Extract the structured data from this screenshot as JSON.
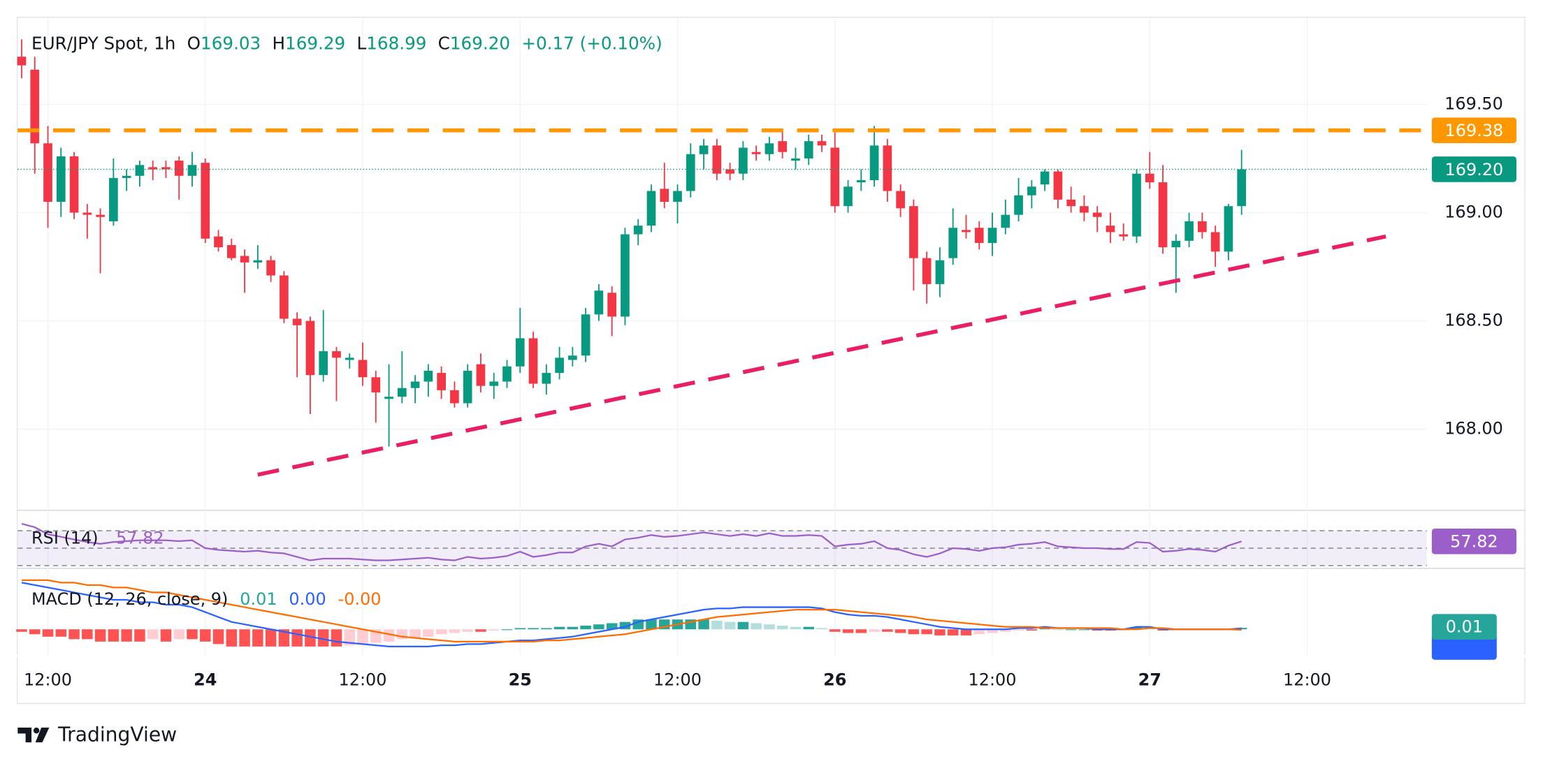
{
  "header": {
    "symbol": "EUR/JPY Spot, 1h",
    "o": "O",
    "open": "169.03",
    "h": "H",
    "high": "169.29",
    "l": "L",
    "low": "168.99",
    "c": "C",
    "close": "169.20",
    "change": "+0.17 (+0.10%)"
  },
  "footer": {
    "brand": "TradingView"
  },
  "chart_data": [
    {
      "type": "candlestick",
      "categories": [
        null,
        null,
        "12:00",
        null,
        null,
        null,
        null,
        null,
        null,
        null,
        null,
        null,
        null,
        null,
        "24",
        null,
        null,
        null,
        null,
        null,
        null,
        null,
        null,
        null,
        null,
        null,
        "12:00",
        null,
        null,
        null,
        null,
        null,
        null,
        null,
        null,
        null,
        null,
        null,
        "25",
        null,
        null,
        null,
        null,
        null,
        null,
        null,
        null,
        null,
        null,
        null,
        "12:00",
        null,
        null,
        null,
        null,
        null,
        null,
        null,
        null,
        null,
        null,
        null,
        "26",
        null,
        null,
        null,
        null,
        null,
        null,
        null,
        null,
        null,
        null,
        null,
        "12:00",
        null,
        null,
        null,
        null,
        null,
        null,
        null,
        null,
        null,
        null,
        null,
        "27",
        null,
        null,
        null,
        null,
        null,
        null,
        null,
        null,
        null,
        null,
        null,
        "12:00",
        null,
        null,
        null,
        null,
        null,
        null,
        null,
        null,
        null
      ],
      "open": [
        169.72,
        169.66,
        169.32,
        169.05,
        169.26,
        169.0,
        168.99,
        168.96,
        169.16,
        169.17,
        169.21,
        169.21,
        169.24,
        169.17,
        169.23,
        168.89,
        168.85,
        168.8,
        168.77,
        168.78,
        168.71,
        168.51,
        168.5,
        168.25,
        168.36,
        168.32,
        168.32,
        168.24,
        168.14,
        168.15,
        168.19,
        168.22,
        168.26,
        168.18,
        168.12,
        168.3,
        168.2,
        168.22,
        168.29,
        168.42,
        168.21,
        168.26,
        168.32,
        168.34,
        168.53,
        168.63,
        168.52,
        168.9,
        168.94,
        169.11,
        169.05,
        169.1,
        169.27,
        169.31,
        169.2,
        169.18,
        169.28,
        169.27,
        169.33,
        169.24,
        169.25,
        169.33,
        169.3,
        169.03,
        169.14,
        169.15,
        169.31,
        169.1,
        169.03,
        168.79,
        168.67,
        168.79,
        168.92,
        168.93,
        168.86,
        168.93,
        168.99,
        169.08,
        169.13,
        169.19,
        169.06,
        169.03,
        169.0,
        168.94,
        168.9,
        168.89,
        169.18,
        169.14,
        168.84,
        168.87,
        168.96,
        168.91,
        168.82,
        169.03,
        null,
        null,
        null,
        null,
        null,
        null,
        null,
        null,
        null,
        null,
        null,
        null,
        null,
        null
      ],
      "high": [
        169.8,
        169.72,
        169.4,
        169.3,
        169.28,
        169.04,
        169.02,
        169.25,
        169.2,
        169.24,
        169.24,
        169.24,
        169.26,
        169.28,
        169.25,
        168.92,
        168.88,
        168.83,
        168.85,
        168.8,
        168.73,
        168.54,
        168.52,
        168.55,
        168.38,
        168.35,
        168.4,
        168.27,
        168.3,
        168.36,
        168.25,
        168.3,
        168.29,
        168.22,
        168.3,
        168.35,
        168.26,
        168.32,
        168.56,
        168.45,
        168.3,
        168.38,
        168.38,
        168.56,
        168.67,
        168.66,
        168.93,
        168.97,
        169.13,
        169.23,
        169.13,
        169.32,
        169.34,
        169.34,
        169.23,
        169.33,
        169.31,
        169.35,
        169.38,
        169.3,
        169.36,
        169.36,
        169.37,
        169.15,
        169.2,
        169.4,
        169.34,
        169.13,
        169.06,
        168.82,
        168.84,
        169.02,
        168.99,
        168.96,
        169.0,
        169.06,
        169.16,
        169.15,
        169.2,
        169.2,
        169.12,
        169.08,
        169.03,
        169.0,
        168.95,
        169.2,
        169.28,
        169.22,
        168.9,
        169.0,
        169.0,
        168.94,
        169.04,
        169.29,
        null,
        null,
        null,
        null,
        null,
        null,
        null,
        null,
        null,
        null,
        null,
        null,
        null,
        null
      ],
      "low": [
        169.62,
        169.18,
        168.93,
        168.98,
        168.97,
        168.88,
        168.72,
        168.94,
        169.1,
        169.12,
        169.15,
        169.16,
        169.06,
        169.12,
        168.86,
        168.82,
        168.78,
        168.63,
        168.74,
        168.68,
        168.49,
        168.24,
        168.07,
        168.22,
        168.13,
        168.28,
        168.2,
        168.03,
        167.92,
        168.12,
        168.12,
        168.15,
        168.14,
        168.1,
        168.1,
        168.17,
        168.14,
        168.19,
        168.26,
        168.19,
        168.16,
        168.23,
        168.29,
        168.31,
        168.5,
        168.43,
        168.48,
        168.85,
        168.91,
        169.02,
        168.95,
        169.07,
        169.2,
        169.15,
        169.15,
        169.15,
        169.24,
        169.24,
        169.25,
        169.2,
        169.22,
        169.28,
        169.0,
        169.0,
        169.1,
        169.12,
        169.05,
        168.98,
        168.64,
        168.58,
        168.61,
        168.76,
        168.88,
        168.83,
        168.8,
        168.9,
        168.96,
        169.02,
        169.1,
        169.02,
        169.0,
        168.96,
        168.91,
        168.86,
        168.87,
        168.86,
        169.11,
        168.81,
        168.63,
        168.84,
        168.88,
        168.75,
        168.78,
        168.99,
        null,
        null,
        null,
        null,
        null,
        null,
        null,
        null,
        null,
        null,
        null,
        null,
        null,
        null
      ],
      "close": [
        169.68,
        169.32,
        169.05,
        169.26,
        169.0,
        168.99,
        168.98,
        169.16,
        169.17,
        169.22,
        169.2,
        169.2,
        169.17,
        169.22,
        168.88,
        168.84,
        168.79,
        168.77,
        168.78,
        168.71,
        168.51,
        168.48,
        168.25,
        168.36,
        168.33,
        168.33,
        168.24,
        168.17,
        168.15,
        168.19,
        168.22,
        168.27,
        168.18,
        168.12,
        168.27,
        168.2,
        168.22,
        168.29,
        168.42,
        168.21,
        168.26,
        168.33,
        168.34,
        168.53,
        168.64,
        168.52,
        168.9,
        168.94,
        169.1,
        169.05,
        169.1,
        169.27,
        169.31,
        169.18,
        169.18,
        169.3,
        169.27,
        169.32,
        169.28,
        169.25,
        169.33,
        169.31,
        169.03,
        169.12,
        169.15,
        169.31,
        169.1,
        169.02,
        168.79,
        168.67,
        168.78,
        168.93,
        168.91,
        168.86,
        168.93,
        168.99,
        169.08,
        169.12,
        169.19,
        169.06,
        169.03,
        169.0,
        168.98,
        168.91,
        168.89,
        169.18,
        169.14,
        168.84,
        168.87,
        168.96,
        168.91,
        168.82,
        169.03,
        169.2,
        null,
        null,
        null,
        null,
        null,
        null,
        null,
        null,
        null,
        null,
        null,
        null,
        null,
        null
      ],
      "up_color": "#089981",
      "down_color": "#f23645",
      "ylim": [
        167.63,
        169.9
      ],
      "yticks": [
        {
          "value": 168,
          "label": "168.00"
        },
        {
          "value": 168.5,
          "label": "168.50"
        },
        {
          "value": 169,
          "label": "169.00"
        },
        {
          "value": 169.5,
          "label": "169.50"
        }
      ],
      "grid": true,
      "level": {
        "value": 169.38,
        "label": "169.38",
        "color": "#ff9800"
      },
      "last_price": {
        "value": 169.2,
        "label": "169.20"
      },
      "trendline": {
        "color": "#e91e63",
        "x_index": [
          18,
          104
        ],
        "values": [
          167.79,
          168.89
        ]
      }
    },
    {
      "type": "line",
      "title": "RSI (14)",
      "value_label": "57.82",
      "color": "#9c5fc9",
      "values": [
        78,
        74,
        66,
        63,
        60,
        57,
        55,
        57,
        58,
        59,
        59,
        59,
        58,
        59,
        50,
        48,
        47,
        46,
        47,
        45,
        44,
        40,
        36,
        38,
        38,
        38,
        37,
        36,
        36,
        37,
        38,
        39,
        37,
        36,
        40,
        38,
        39,
        41,
        46,
        40,
        42,
        45,
        45,
        52,
        55,
        52,
        60,
        62,
        65,
        63,
        64,
        66,
        68,
        66,
        64,
        66,
        64,
        67,
        64,
        64,
        65,
        64,
        52,
        54,
        55,
        58,
        50,
        48,
        43,
        40,
        44,
        50,
        49,
        47,
        50,
        51,
        54,
        55,
        57,
        52,
        51,
        50,
        50,
        49,
        49,
        57,
        56,
        46,
        47,
        49,
        48,
        46,
        53,
        57.82,
        null,
        null,
        null,
        null,
        null,
        null,
        null,
        null,
        null,
        null,
        null,
        null,
        null,
        null
      ],
      "ylim": [
        28,
        90
      ],
      "bands": [
        30,
        50,
        70
      ]
    },
    {
      "type": "macd",
      "title": "MACD (12, 26, close, 9)",
      "histogram": {
        "value_label": "0.01",
        "colors": [
          "#26a69a",
          "#b2dfdb",
          "#ffcdd2",
          "#ff5252"
        ],
        "values": [
          -0.01,
          -0.02,
          -0.03,
          -0.03,
          -0.04,
          -0.04,
          -0.05,
          -0.05,
          -0.05,
          -0.05,
          -0.04,
          -0.05,
          -0.04,
          -0.04,
          -0.05,
          -0.06,
          -0.07,
          -0.07,
          -0.07,
          -0.07,
          -0.07,
          -0.07,
          -0.07,
          -0.07,
          -0.07,
          -0.065,
          -0.06,
          -0.055,
          -0.05,
          -0.04,
          -0.035,
          -0.03,
          -0.02,
          -0.015,
          -0.01,
          -0.01,
          -0.005,
          0.0,
          0.005,
          0.005,
          0.005,
          0.01,
          0.01,
          0.015,
          0.02,
          0.025,
          0.03,
          0.04,
          0.04,
          0.04,
          0.04,
          0.04,
          0.04,
          0.035,
          0.03,
          0.03,
          0.025,
          0.02,
          0.015,
          0.01,
          0.01,
          0.005,
          -0.01,
          -0.015,
          -0.015,
          -0.01,
          -0.01,
          -0.015,
          -0.02,
          -0.02,
          -0.025,
          -0.025,
          -0.025,
          -0.02,
          -0.015,
          -0.01,
          -0.005,
          -0.005,
          0.005,
          0.0,
          0.0,
          0.0,
          -0.005,
          -0.005,
          0.0,
          0.01,
          0.005,
          -0.005,
          0.0,
          0.0,
          0.0,
          0.0,
          0.0,
          0.006,
          null,
          null,
          null,
          null,
          null,
          null,
          null,
          null,
          null,
          null,
          null,
          null,
          null,
          null
        ]
      },
      "macd": {
        "value_label": "0.00",
        "color": "#2962ff",
        "values": [
          0.19,
          0.18,
          0.17,
          0.16,
          0.15,
          0.14,
          0.13,
          0.12,
          0.12,
          0.11,
          0.11,
          0.1,
          0.1,
          0.09,
          0.07,
          0.05,
          0.03,
          0.02,
          0.01,
          0.0,
          -0.01,
          -0.02,
          -0.03,
          -0.04,
          -0.05,
          -0.055,
          -0.06,
          -0.065,
          -0.07,
          -0.07,
          -0.07,
          -0.07,
          -0.065,
          -0.065,
          -0.06,
          -0.06,
          -0.055,
          -0.05,
          -0.045,
          -0.045,
          -0.04,
          -0.035,
          -0.03,
          -0.02,
          -0.01,
          0.0,
          0.01,
          0.03,
          0.04,
          0.05,
          0.06,
          0.07,
          0.08,
          0.085,
          0.085,
          0.09,
          0.09,
          0.09,
          0.09,
          0.09,
          0.09,
          0.085,
          0.07,
          0.06,
          0.055,
          0.055,
          0.05,
          0.04,
          0.03,
          0.02,
          0.01,
          0.005,
          0.0,
          0.0,
          0.0,
          0.0,
          0.005,
          0.005,
          0.01,
          0.005,
          0.005,
          0.005,
          0.0,
          0.0,
          0.0,
          0.01,
          0.01,
          0.0,
          0.0,
          0.0,
          0.0,
          0.0,
          0.0,
          0.004,
          null,
          null,
          null,
          null,
          null,
          null,
          null,
          null,
          null,
          null,
          null,
          null,
          null,
          null
        ]
      },
      "signal": {
        "value_label": "-0.00",
        "color": "#ff6d00",
        "values": [
          0.2,
          0.2,
          0.2,
          0.19,
          0.19,
          0.18,
          0.18,
          0.17,
          0.17,
          0.16,
          0.15,
          0.15,
          0.14,
          0.13,
          0.12,
          0.11,
          0.1,
          0.09,
          0.08,
          0.07,
          0.06,
          0.05,
          0.04,
          0.03,
          0.02,
          0.01,
          0.0,
          -0.01,
          -0.02,
          -0.03,
          -0.035,
          -0.04,
          -0.045,
          -0.05,
          -0.05,
          -0.05,
          -0.05,
          -0.05,
          -0.05,
          -0.05,
          -0.045,
          -0.045,
          -0.04,
          -0.035,
          -0.03,
          -0.025,
          -0.02,
          -0.01,
          0.0,
          0.01,
          0.02,
          0.03,
          0.04,
          0.05,
          0.055,
          0.06,
          0.065,
          0.07,
          0.075,
          0.08,
          0.08,
          0.08,
          0.08,
          0.075,
          0.07,
          0.065,
          0.06,
          0.055,
          0.05,
          0.04,
          0.035,
          0.03,
          0.025,
          0.02,
          0.015,
          0.01,
          0.01,
          0.01,
          0.005,
          0.005,
          0.005,
          0.005,
          0.005,
          0.005,
          0.0,
          0.0,
          0.005,
          0.005,
          0.0,
          0.0,
          0.0,
          0.0,
          0.0,
          -0.002,
          null,
          null,
          null,
          null,
          null,
          null,
          null,
          null,
          null,
          null,
          null,
          null,
          null,
          null
        ]
      },
      "ylim": [
        -0.1,
        0.24
      ]
    }
  ]
}
